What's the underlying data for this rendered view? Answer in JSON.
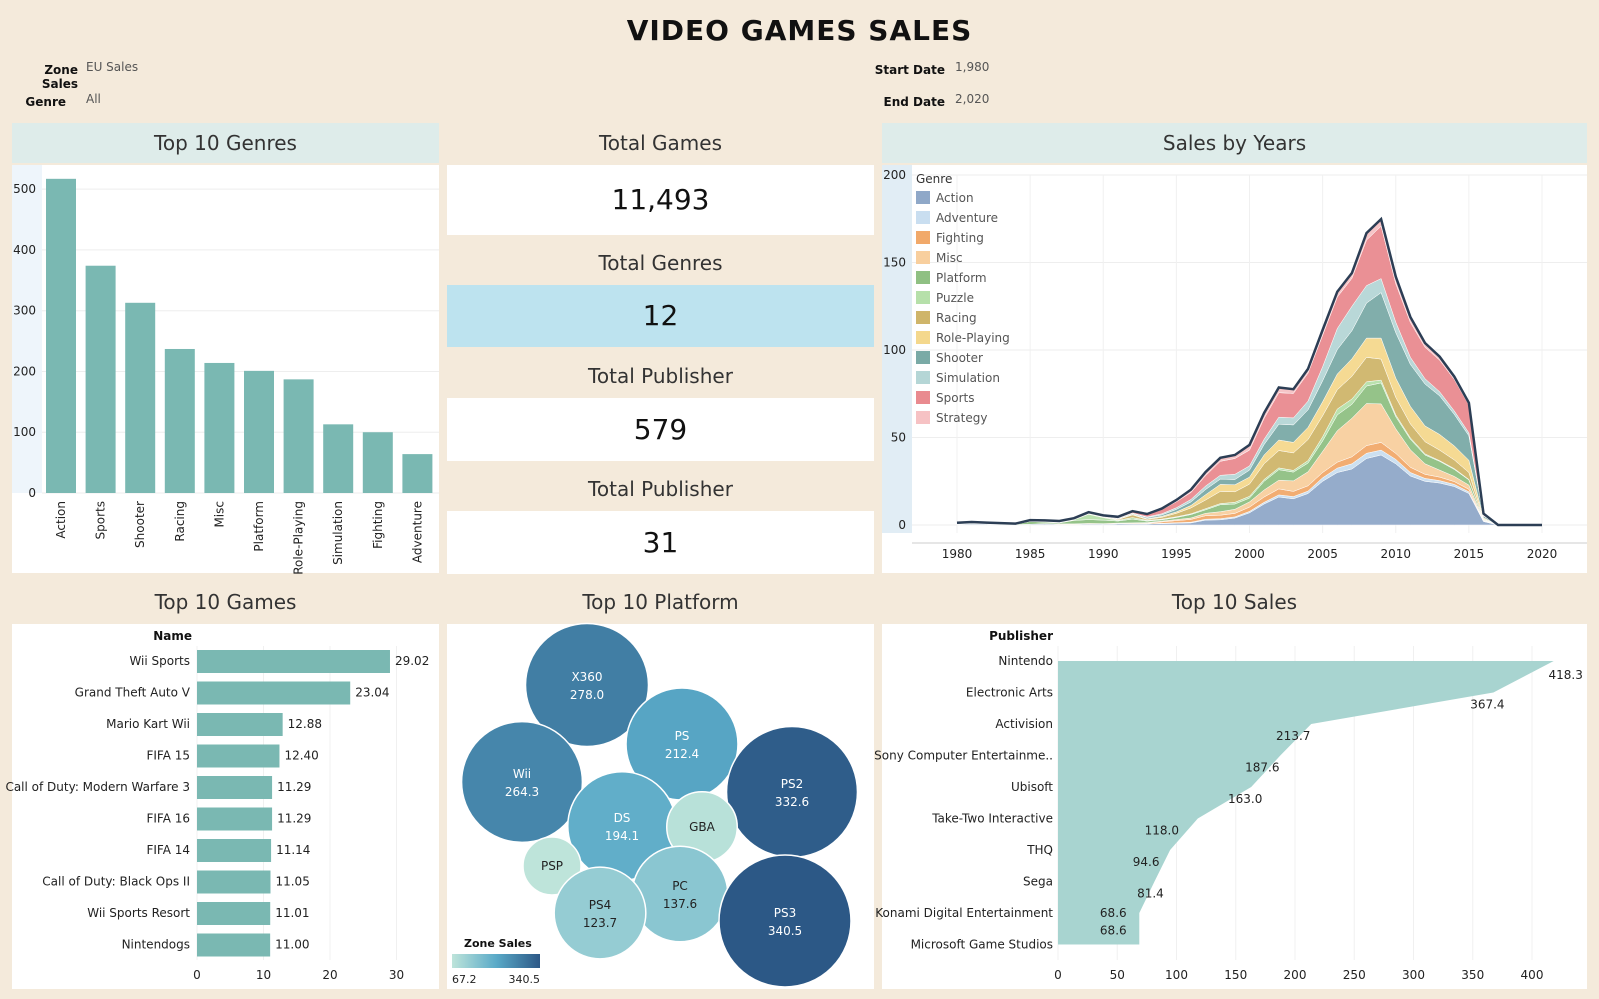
{
  "title": "VIDEO GAMES SALES",
  "filters": {
    "zone_label": "Zone Sales",
    "zone_value": "EU Sales",
    "genre_label": "Genre",
    "genre_value": "All",
    "start_label": "Start Date",
    "start_value": "1,980",
    "end_label": "End Date",
    "end_value": "2,020"
  },
  "panels": {
    "top_genres": "Top 10 Genres",
    "total_games_title": "Total Games",
    "total_games_value": "11,493",
    "total_genres_title": "Total Genres",
    "total_genres_value": "12",
    "total_publisher_title": "Total Publisher",
    "total_publisher_value": "579",
    "total_publisher2_title": "Total Publisher",
    "total_publisher2_value": "31",
    "sales_by_years": "Sales by Years",
    "top_games": "Top 10 Games",
    "top_platform": "Top 10 Platform",
    "top_sales": "Top 10 Sales"
  },
  "colors": {
    "teal": "#7ab8b2",
    "header_bg": "#deecea",
    "kpi_highlight": "#bde3ef",
    "background": "#f4eadb"
  },
  "chart_data": [
    {
      "id": "genres",
      "type": "bar",
      "categories": [
        "Action",
        "Sports",
        "Shooter",
        "Racing",
        "Misc",
        "Platform",
        "Role-Playing",
        "Simulation",
        "Fighting",
        "Adventure"
      ],
      "values": [
        517,
        374,
        313,
        237,
        214,
        201,
        187,
        113,
        100,
        64
      ],
      "yticks": [
        "0",
        "100",
        "200",
        "300",
        "400",
        "500"
      ],
      "ylim": [
        0,
        520
      ]
    },
    {
      "id": "years",
      "type": "area",
      "legend_title": "Genre",
      "legend_placement": "top-left",
      "x": [
        1980,
        1981,
        1982,
        1983,
        1984,
        1985,
        1986,
        1987,
        1988,
        1989,
        1990,
        1991,
        1992,
        1993,
        1994,
        1995,
        1996,
        1997,
        1998,
        1999,
        2000,
        2001,
        2002,
        2003,
        2004,
        2005,
        2006,
        2007,
        2008,
        2009,
        2010,
        2011,
        2012,
        2013,
        2014,
        2015,
        2016,
        2017,
        2018,
        2019,
        2020
      ],
      "xticks": [
        "1980",
        "1985",
        "1990",
        "1995",
        "2000",
        "2005",
        "2010",
        "2015",
        "2020"
      ],
      "yticks": [
        "0",
        "50",
        "100",
        "150",
        "200"
      ],
      "ylim": [
        0,
        200
      ],
      "series": [
        {
          "name": "Action",
          "color": "#8fa8c8",
          "values": [
            0.3,
            0.5,
            0.4,
            0.2,
            0.2,
            0.4,
            0.6,
            0.3,
            0.3,
            0.5,
            0.4,
            0.7,
            0.6,
            0.6,
            0.8,
            1,
            1.2,
            2.8,
            3,
            4,
            7,
            12,
            16,
            15,
            18,
            25,
            30,
            32,
            38,
            40,
            35,
            28,
            25,
            24,
            22,
            18,
            2,
            0,
            0,
            0,
            0
          ]
        },
        {
          "name": "Adventure",
          "color": "#c9def0",
          "values": [
            0,
            0,
            0,
            0,
            0,
            0,
            0,
            0,
            0,
            0,
            0,
            0,
            0,
            0,
            0.2,
            0.3,
            0.4,
            0.5,
            0.6,
            0.6,
            0.8,
            1,
            1.2,
            1.2,
            1.4,
            2,
            2.5,
            3,
            3,
            2.8,
            2.5,
            2,
            1.6,
            1.4,
            1.2,
            1,
            0.2,
            0,
            0,
            0,
            0
          ]
        },
        {
          "name": "Fighting",
          "color": "#f1a96a",
          "values": [
            0,
            0,
            0,
            0,
            0,
            0,
            0,
            0,
            0,
            0,
            0,
            0,
            0.2,
            0.4,
            0.8,
            1.2,
            1.6,
            2,
            2,
            2,
            2.4,
            3,
            3.4,
            3,
            3,
            3,
            3.4,
            4,
            4.4,
            4.4,
            3.4,
            3,
            2.4,
            2,
            1.6,
            1.4,
            0.2,
            0,
            0,
            0,
            0
          ]
        },
        {
          "name": "Misc",
          "color": "#f8cf9e",
          "values": [
            0,
            0,
            0,
            0,
            0,
            0,
            0.2,
            0.3,
            0.3,
            0.4,
            0.4,
            0.4,
            0.4,
            0.4,
            0.4,
            0.6,
            0.8,
            1.4,
            2,
            2.4,
            3,
            4,
            5,
            6,
            8,
            12,
            18,
            22,
            24,
            22,
            14,
            10,
            6,
            4,
            3,
            2.4,
            0.3,
            0,
            0,
            0,
            0
          ]
        },
        {
          "name": "Platform",
          "color": "#8fc083",
          "values": [
            0.2,
            0.4,
            0.3,
            0.3,
            0.2,
            1.6,
            0.8,
            0.6,
            2,
            2.2,
            2,
            1.2,
            2.2,
            0.8,
            0.8,
            1.2,
            2,
            2,
            4,
            3,
            2.2,
            5,
            6,
            5,
            5,
            6,
            9,
            8,
            10,
            12,
            7,
            6,
            5,
            5,
            4,
            3,
            0.4,
            0,
            0,
            0,
            0
          ]
        },
        {
          "name": "Puzzle",
          "color": "#b6e0aa",
          "values": [
            0,
            0,
            0,
            0,
            0,
            0.2,
            0.3,
            0.3,
            0.4,
            3,
            1.4,
            0.4,
            0.8,
            0.4,
            0.4,
            0.4,
            0.4,
            0.6,
            0.6,
            1,
            1,
            1,
            1,
            1,
            1.4,
            2.4,
            3.4,
            3,
            2.4,
            1.6,
            1,
            0.8,
            0.6,
            0.4,
            0.4,
            0.2,
            0,
            0,
            0,
            0,
            0
          ]
        },
        {
          "name": "Racing",
          "color": "#cfb56a",
          "values": [
            0,
            0,
            0,
            0,
            0,
            0.2,
            0.2,
            0.2,
            0.3,
            0.3,
            0.3,
            0.4,
            1.6,
            0.6,
            1,
            2,
            3.4,
            5,
            7,
            6,
            7,
            9,
            10,
            10,
            12,
            12,
            11,
            13,
            14,
            12,
            10,
            8,
            7,
            6,
            5,
            4,
            0.4,
            0,
            0,
            0,
            0
          ]
        },
        {
          "name": "Role-Playing",
          "color": "#f4d88d",
          "values": [
            0,
            0,
            0,
            0,
            0,
            0,
            0,
            0,
            0,
            0.3,
            0.3,
            0.4,
            0.4,
            0.4,
            0.6,
            0.8,
            1.4,
            3,
            4,
            4,
            4,
            5,
            6,
            6,
            7,
            8,
            9,
            10,
            11,
            12,
            11,
            10,
            9,
            9,
            8,
            7,
            0.6,
            0,
            0,
            0,
            0
          ]
        },
        {
          "name": "Shooter",
          "color": "#7aaaa6",
          "values": [
            0.6,
            0.4,
            0.4,
            0.3,
            0.2,
            0.2,
            0.3,
            0.3,
            0.3,
            0.3,
            0.3,
            0.4,
            0.4,
            0.6,
            0.8,
            1.4,
            2,
            3,
            3,
            3,
            4,
            6,
            9,
            10,
            10,
            12,
            14,
            16,
            20,
            26,
            26,
            24,
            24,
            22,
            18,
            14,
            1,
            0,
            0,
            0,
            0
          ]
        },
        {
          "name": "Simulation",
          "color": "#b5d6d6",
          "values": [
            0,
            0,
            0,
            0,
            0,
            0,
            0,
            0,
            0,
            0,
            0,
            0,
            0.2,
            0.4,
            0.6,
            1,
            1.4,
            2,
            2.2,
            3,
            2.4,
            3,
            4,
            4,
            5,
            8,
            12,
            14,
            10,
            8,
            6,
            4,
            3,
            2.4,
            2,
            1.6,
            0.2,
            0,
            0,
            0,
            0
          ]
        },
        {
          "name": "Sports",
          "color": "#e98a8f",
          "values": [
            0.2,
            0.4,
            0.3,
            0.3,
            0.2,
            0.2,
            0.2,
            0.3,
            0.3,
            0.3,
            0.4,
            0.6,
            0.8,
            1.4,
            2.4,
            3.4,
            4,
            6,
            8,
            9,
            9,
            12,
            14,
            14,
            16,
            18,
            18,
            16,
            26,
            30,
            22,
            20,
            18,
            18,
            18,
            16,
            1,
            0,
            0,
            0,
            0
          ]
        },
        {
          "name": "Strategy",
          "color": "#f6c2c4",
          "values": [
            0,
            0,
            0,
            0,
            0,
            0,
            0,
            0,
            0,
            0,
            0,
            0.2,
            0.3,
            0.3,
            0.6,
            1,
            1.6,
            2,
            2,
            2,
            3,
            3,
            3,
            2.4,
            2.4,
            3,
            3,
            3,
            4,
            4,
            4,
            3,
            2.4,
            2,
            1.6,
            1.2,
            0.2,
            0,
            0,
            0,
            0
          ]
        }
      ]
    },
    {
      "id": "games",
      "type": "bar",
      "header": "Name",
      "categories": [
        "Wii Sports",
        "Grand Theft Auto V",
        "Mario Kart Wii",
        "FIFA 15",
        "Call of Duty: Modern Warfare 3",
        "FIFA 16",
        "FIFA 14",
        "Call of Duty: Black Ops II",
        "Wii Sports Resort",
        "Nintendogs"
      ],
      "values": [
        29.02,
        23.04,
        12.88,
        12.4,
        11.29,
        11.29,
        11.14,
        11.05,
        11.01,
        11.0
      ],
      "labels": [
        "29.02",
        "23.04",
        "12.88",
        "12.40",
        "11.29",
        "11.29",
        "11.14",
        "11.05",
        "11.01",
        "11.00"
      ],
      "xticks": [
        "0",
        "10",
        "20",
        "30"
      ],
      "xlim": [
        0,
        36
      ]
    },
    {
      "id": "platforms",
      "type": "bubble",
      "legend_title": "Zone Sales",
      "legend_min": "67.2",
      "legend_max": "340.5",
      "items": [
        {
          "name": "X360",
          "value": 278.0,
          "label": "278.0"
        },
        {
          "name": "PS",
          "value": 212.4,
          "label": "212.4"
        },
        {
          "name": "Wii",
          "value": 264.3,
          "label": "264.3"
        },
        {
          "name": "PS2",
          "value": 332.6,
          "label": "332.6"
        },
        {
          "name": "DS",
          "value": 194.1,
          "label": "194.1"
        },
        {
          "name": "GBA",
          "value": 75.0,
          "label": ""
        },
        {
          "name": "PSP",
          "value": 67.2,
          "label": ""
        },
        {
          "name": "PC",
          "value": 137.6,
          "label": "137.6"
        },
        {
          "name": "PS4",
          "value": 123.7,
          "label": "123.7"
        },
        {
          "name": "PS3",
          "value": 340.5,
          "label": "340.5"
        }
      ]
    },
    {
      "id": "publishers",
      "type": "area",
      "header": "Publisher",
      "categories": [
        "Nintendo",
        "Electronic Arts",
        "Activision",
        "Sony Computer Entertainme..",
        "Ubisoft",
        "Take-Two Interactive",
        "THQ",
        "Sega",
        "Konami Digital Entertainment",
        "Microsoft Game Studios"
      ],
      "values": [
        418.3,
        367.4,
        213.7,
        187.6,
        163.0,
        118.0,
        94.6,
        81.4,
        68.6,
        68.6
      ],
      "labels": [
        "418.3",
        "367.4",
        "213.7",
        "187.6",
        "163.0",
        "118.0",
        "94.6",
        "81.4",
        "68.6",
        "68.6"
      ],
      "xticks": [
        "0",
        "50",
        "100",
        "150",
        "200",
        "250",
        "300",
        "350",
        "400"
      ],
      "xlim": [
        0,
        440
      ]
    }
  ]
}
